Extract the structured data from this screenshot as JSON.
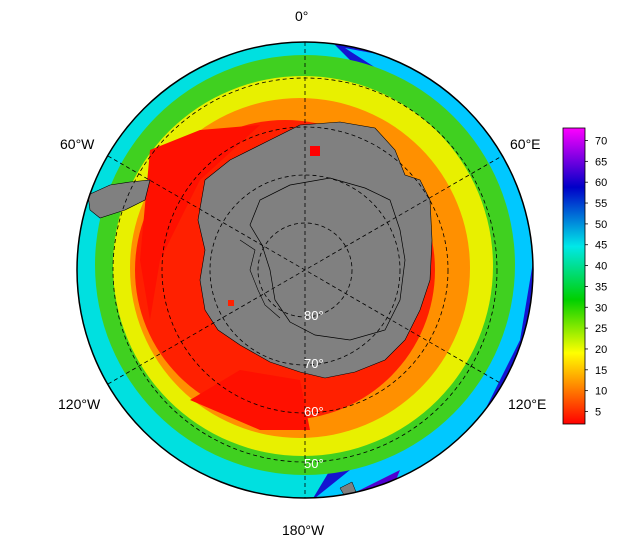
{
  "map": {
    "projection": "south-polar-stereographic",
    "land_color": "#808080",
    "outside_color": "#ffffff",
    "longitude_labels": {
      "top": "0°",
      "upper_left": "60°W",
      "upper_right": "60°E",
      "lower_left": "120°W",
      "lower_right": "120°E",
      "bottom": "180°W"
    },
    "latitude_labels": [
      "80°",
      "70°",
      "60°",
      "50°"
    ],
    "graticule": "dashed"
  },
  "colorbar": {
    "ticks": [
      "70",
      "65",
      "60",
      "55",
      "50",
      "45",
      "40",
      "35",
      "30",
      "25",
      "20",
      "15",
      "10",
      "5"
    ],
    "range": [
      2,
      73
    ],
    "colors": [
      "#ff0000",
      "#ff8000",
      "#ffff00",
      "#00d000",
      "#00e8e8",
      "#0000c8",
      "#ff00ff"
    ]
  }
}
